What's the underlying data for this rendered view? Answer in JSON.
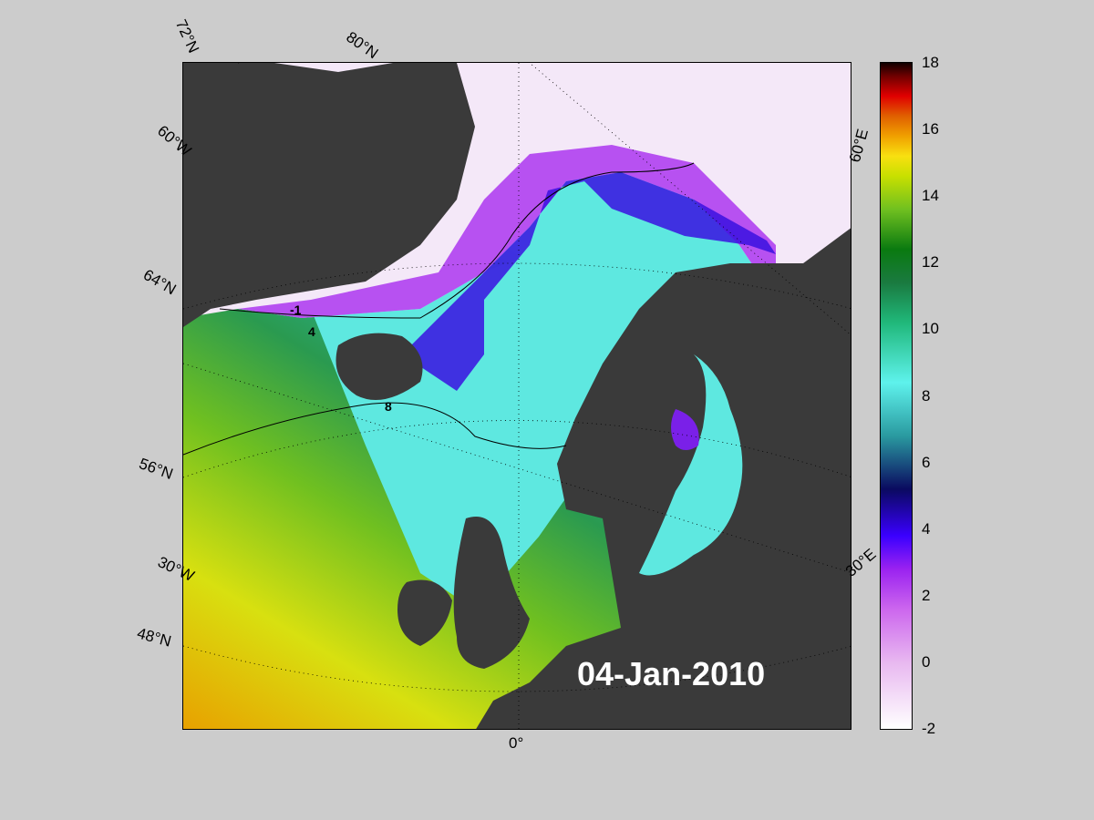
{
  "map": {
    "date": "04-Jan-2010",
    "lat_labels": [
      "72°N",
      "80°N",
      "60°W",
      "64°N",
      "56°N",
      "30°W",
      "48°N"
    ],
    "lon_labels": [
      "0°",
      "30°E",
      "60°E"
    ],
    "contour_labels": [
      "-1",
      "4",
      "8"
    ]
  },
  "colorbar": {
    "ticks": [
      "18",
      "16",
      "14",
      "12",
      "10",
      "8",
      "6",
      "4",
      "2",
      "0",
      "-2"
    ],
    "range": [
      -2,
      18
    ]
  },
  "colors": {
    "land": "#3a3a3a",
    "background": "#cccccc",
    "ice": "#f4e8f8",
    "sea_warm": "#e8c000",
    "sea_mid": "#5ee8e0"
  }
}
